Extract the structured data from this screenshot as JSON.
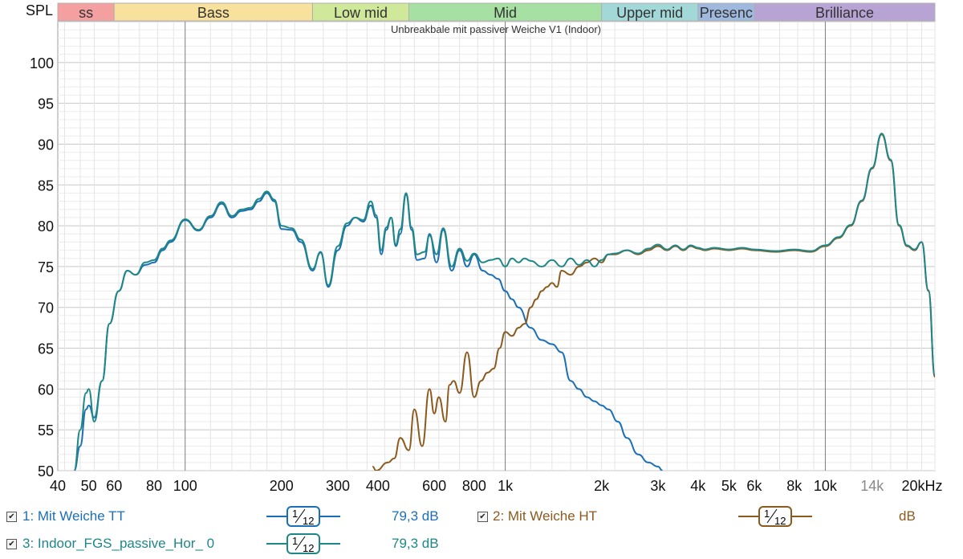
{
  "chart_data": {
    "type": "line",
    "title": "Unbreakbale mit passiver Weiche V1 (Indoor)",
    "ylabel": "SPL",
    "xlabel": "",
    "x_scale": "log",
    "xlim": [
      40,
      22000
    ],
    "ylim": [
      50,
      105
    ],
    "grid": true,
    "y_ticks": [
      "50",
      "55",
      "60",
      "65",
      "70",
      "75",
      "80",
      "85",
      "90",
      "95",
      "100"
    ],
    "x_ticks": [
      {
        "value": 40,
        "label": "40"
      },
      {
        "value": 50,
        "label": "50"
      },
      {
        "value": 60,
        "label": "60"
      },
      {
        "value": 80,
        "label": "80"
      },
      {
        "value": 100,
        "label": "100"
      },
      {
        "value": 200,
        "label": "200"
      },
      {
        "value": 300,
        "label": "300"
      },
      {
        "value": 400,
        "label": "400"
      },
      {
        "value": 600,
        "label": "600"
      },
      {
        "value": 800,
        "label": "800"
      },
      {
        "value": 1000,
        "label": "1k"
      },
      {
        "value": 2000,
        "label": "2k"
      },
      {
        "value": 3000,
        "label": "3k"
      },
      {
        "value": 4000,
        "label": "4k"
      },
      {
        "value": 5000,
        "label": "5k"
      },
      {
        "value": 6000,
        "label": "6k"
      },
      {
        "value": 8000,
        "label": "8k"
      },
      {
        "value": 10000,
        "label": "10k"
      },
      {
        "value": 14000,
        "label": "14k"
      },
      {
        "value": 20000,
        "label": "20kHz"
      }
    ],
    "bands": [
      {
        "name": "Sub bass",
        "label": "ss",
        "from": 20,
        "to": 60,
        "color": "#f4a0a0"
      },
      {
        "name": "Bass",
        "label": "Bass",
        "from": 60,
        "to": 250,
        "color": "#f7e19c"
      },
      {
        "name": "Low mid",
        "label": "Low mid",
        "from": 250,
        "to": 500,
        "color": "#cfe89a"
      },
      {
        "name": "Mid",
        "label": "Mid",
        "from": 500,
        "to": 2000,
        "color": "#a6e0a2"
      },
      {
        "name": "Upper mid",
        "label": "Upper mid",
        "from": 2000,
        "to": 4000,
        "color": "#a3d8d8"
      },
      {
        "name": "Presence",
        "label": "Presenc",
        "from": 4000,
        "to": 6000,
        "color": "#9fb8dd"
      },
      {
        "name": "Brilliance",
        "label": "Brilliance",
        "from": 6000,
        "to": 22000,
        "color": "#b7a3d4"
      }
    ],
    "series": [
      {
        "name": "1: Mit Weiche TT",
        "color": "#1b6fb6",
        "x": [
          45,
          47,
          49,
          50,
          52,
          55,
          58,
          62,
          66,
          70,
          75,
          80,
          85,
          90,
          100,
          110,
          120,
          130,
          140,
          150,
          160,
          170,
          180,
          190,
          200,
          215,
          230,
          250,
          265,
          280,
          300,
          320,
          340,
          360,
          380,
          395,
          410,
          425,
          440,
          455,
          470,
          490,
          510,
          530,
          560,
          580,
          610,
          640,
          680,
          720,
          760,
          800,
          850,
          900,
          950,
          1000,
          1050,
          1100,
          1200,
          1300,
          1400,
          1500,
          1600,
          1700,
          1800,
          1900,
          2000,
          2100,
          2250,
          2400,
          2600,
          2800,
          3000,
          3100
        ],
        "y": [
          50,
          53,
          57.5,
          58,
          56.5,
          61,
          68,
          72,
          74.5,
          74,
          75.2,
          75.5,
          77,
          78,
          80.7,
          79.4,
          81,
          82.7,
          81,
          81.8,
          82,
          83,
          84,
          83,
          79.6,
          79.5,
          78,
          74.5,
          76.8,
          72.5,
          77,
          80,
          81,
          80.5,
          82.5,
          81,
          76.5,
          79.5,
          81,
          77.5,
          79,
          83.8,
          79.5,
          75.8,
          76,
          79,
          75.5,
          79.5,
          74.5,
          77,
          75,
          76.5,
          74.5,
          74,
          73.5,
          72,
          71,
          70,
          67.5,
          66,
          65.5,
          64.5,
          61,
          60,
          59,
          58.5,
          58,
          57.5,
          56,
          54,
          52,
          51,
          50.5,
          50
        ]
      },
      {
        "name": "2: Mit Weiche HT",
        "color": "#8b5a1e",
        "x": [
          385,
          395,
          430,
          450,
          470,
          500,
          520,
          550,
          580,
          600,
          620,
          650,
          670,
          690,
          720,
          760,
          800,
          840,
          880,
          920,
          960,
          1000,
          1050,
          1100,
          1150,
          1200,
          1250,
          1300,
          1350,
          1400,
          1450,
          1500,
          1600,
          1700,
          1800,
          1900,
          2000,
          2100,
          2200,
          2400,
          2600,
          2800,
          3000,
          3200,
          3400,
          3600,
          3800,
          4000,
          4200,
          4500,
          5000,
          5500,
          6000,
          7000,
          8000,
          9000,
          10000,
          11000,
          12000,
          13000,
          14000,
          15000,
          16000,
          17000,
          18000,
          19000,
          20000,
          21000,
          22000
        ],
        "y": [
          50.5,
          50,
          51,
          51.5,
          54,
          52.5,
          57.5,
          53,
          60,
          57,
          59,
          56,
          60.5,
          61,
          59.5,
          64.5,
          59,
          61,
          62,
          62.5,
          65,
          67,
          66.5,
          67.5,
          68,
          70,
          71,
          72,
          72.5,
          73,
          72.5,
          74.5,
          74,
          75,
          75.5,
          76,
          75.5,
          76.5,
          76.5,
          77,
          76.5,
          77,
          77.5,
          77,
          77.5,
          77,
          77.5,
          77.2,
          77,
          77.2,
          77,
          77.2,
          77,
          76.8,
          77,
          76.8,
          77.5,
          78.5,
          80,
          83,
          87,
          91.2,
          88,
          80,
          77.5,
          77,
          78,
          72,
          61.5
        ]
      },
      {
        "name": "3: Indoor_FGS_passive_Hor_ 0",
        "color": "#1e8787",
        "x": [
          45,
          47,
          49,
          50,
          52,
          55,
          58,
          62,
          66,
          70,
          75,
          80,
          85,
          90,
          100,
          110,
          120,
          130,
          140,
          150,
          160,
          170,
          180,
          190,
          200,
          215,
          230,
          250,
          265,
          280,
          300,
          320,
          340,
          360,
          380,
          395,
          410,
          425,
          440,
          455,
          470,
          490,
          510,
          530,
          560,
          580,
          610,
          640,
          680,
          720,
          760,
          800,
          850,
          900,
          950,
          1000,
          1050,
          1100,
          1150,
          1200,
          1300,
          1400,
          1500,
          1600,
          1700,
          1800,
          1900,
          2000,
          2100,
          2200,
          2400,
          2600,
          2800,
          3000,
          3200,
          3400,
          3600,
          3800,
          4000,
          4200,
          4500,
          5000,
          5500,
          6000,
          7000,
          8000,
          9000,
          10000,
          11000,
          12000,
          13000,
          14000,
          15000,
          16000,
          17000,
          18000,
          19000,
          20000,
          21000,
          22000
        ],
        "y": [
          50,
          55,
          59.5,
          60,
          56,
          61,
          68,
          72,
          74.5,
          74,
          75.5,
          75.8,
          77.2,
          78.2,
          80.8,
          79.5,
          81.2,
          82.9,
          81.2,
          82,
          82.2,
          83.3,
          84.2,
          83.2,
          80,
          79.7,
          78.3,
          74.7,
          76.7,
          72.7,
          77.5,
          80.3,
          81,
          80.7,
          83,
          81.3,
          77,
          79.8,
          81,
          77.7,
          79.6,
          84,
          79.8,
          76.5,
          76.8,
          78.8,
          76.5,
          79.7,
          75,
          77.2,
          75.7,
          76.6,
          75.5,
          75.8,
          76,
          75,
          76,
          75.5,
          76,
          75.7,
          75,
          75.8,
          75,
          76,
          75.2,
          75.8,
          75,
          75.8,
          76.5,
          76.6,
          77,
          76.6,
          77.2,
          77.7,
          77.1,
          77.6,
          77.1,
          77.6,
          77.3,
          77.1,
          77.3,
          77.1,
          77.3,
          77.1,
          76.9,
          77.1,
          76.9,
          77.6,
          78.6,
          80.1,
          83.1,
          87.1,
          91.3,
          88.1,
          80.1,
          77.6,
          77.1,
          78,
          72.1,
          61.7
        ]
      }
    ]
  },
  "legend": {
    "items": [
      {
        "name": "1: Mit Weiche TT",
        "smoothing_num": "1",
        "smoothing_den": "12",
        "value": "79,3 dB",
        "color": "#1b6fb6"
      },
      {
        "name": "2: Mit Weiche HT",
        "smoothing_num": "1",
        "smoothing_den": "12",
        "value": "dB",
        "color": "#8b5a1e"
      },
      {
        "name": "3: Indoor_FGS_passive_Hor_ 0",
        "smoothing_num": "1",
        "smoothing_den": "12",
        "value": "79,3 dB",
        "color": "#1e8787"
      }
    ],
    "checkbox_mark": "✔"
  }
}
